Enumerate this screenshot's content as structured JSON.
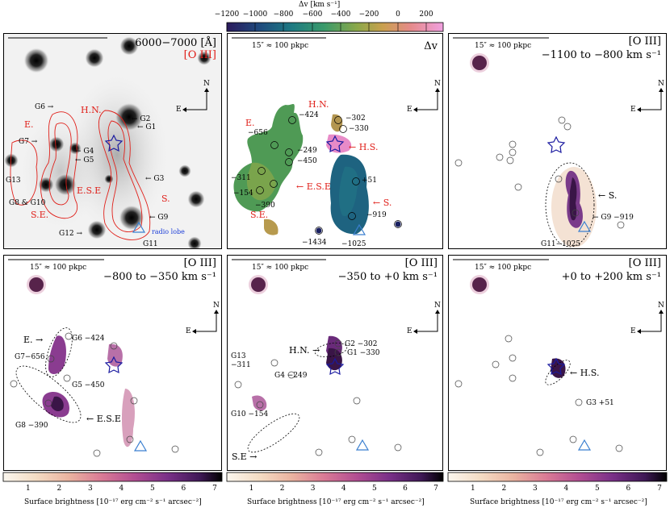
{
  "top_colorbar": {
    "title": "Δv [km s⁻¹]",
    "ticks": [
      "−1200",
      "−1000",
      "−800",
      "−600",
      "−400",
      "−200",
      "0",
      "200"
    ]
  },
  "bottom_colorbar": {
    "title": "Surface brightness [10⁻¹⁷ erg cm⁻² s⁻¹ arcsec⁻²]",
    "ticks": [
      "1",
      "2",
      "3",
      "4",
      "5",
      "6",
      "7"
    ]
  },
  "scale_label": "15″ ≈ 100 pkpc",
  "compass": {
    "north": "N",
    "east": "E"
  },
  "panels": {
    "p1": {
      "title": "6000−7000 [Å]",
      "subtitle": "[O III]",
      "labels": {
        "hn": "H.N.",
        "e": "E.",
        "ese": "E.S.E",
        "s": "S.",
        "se": "S.E.",
        "g1": "← G1",
        "g2": "← G2",
        "g3": "← G3",
        "g4": "← G4",
        "g5": "← G5",
        "g6": "G6 →",
        "g7": "G7 →",
        "g8g10": "G8 & G10",
        "g9": "← G9",
        "g11": "G11",
        "g12": "G12 →",
        "g13": "G13",
        "radio": "radio lobe"
      }
    },
    "p2": {
      "title": "Δv",
      "labels": {
        "hn": "H.N.",
        "e": "E.",
        "ese": "← E.S.E",
        "s": "← S.",
        "se": "S.E.",
        "hs": "← H.S.",
        "v656": "−656",
        "v424": "−424",
        "v302": "−302",
        "v330": "−330",
        "v249": "−249",
        "v450": "−450",
        "v311": "−311",
        "v154": "−154",
        "v390": "−390",
        "v51": "+51",
        "v919": "−919",
        "v1434": "−1434",
        "v1025": "−1025"
      }
    },
    "p3": {
      "title": "[O III]",
      "subtitle": "−1100 to −800 km s⁻¹",
      "labels": {
        "s": "← S.",
        "g9": "← G9 −919",
        "g11": "G11−1025"
      }
    },
    "p4": {
      "title": "[O III]",
      "subtitle": "−800 to −350 km s⁻¹",
      "labels": {
        "e": "E. →",
        "g6": "G6 −424",
        "g7": "G7−656",
        "g5": "G5 −450",
        "g8": "G8 −390",
        "ese": "← E.S.E"
      }
    },
    "p5": {
      "title": "[O III]",
      "subtitle": "−350 to +0 km s⁻¹",
      "labels": {
        "g2": "G2 −302",
        "hn": "H.N. →",
        "g1": "G1 −330",
        "g4": "G4 −249",
        "g13": "G13",
        "g13v": "−311",
        "g10": "G10 −154",
        "se": "S.E →"
      }
    },
    "p6": {
      "title": "[O III]",
      "subtitle": "+0 to +200 km s⁻¹",
      "labels": {
        "hs": "← H.S.",
        "g3": "G3 +51"
      }
    }
  }
}
